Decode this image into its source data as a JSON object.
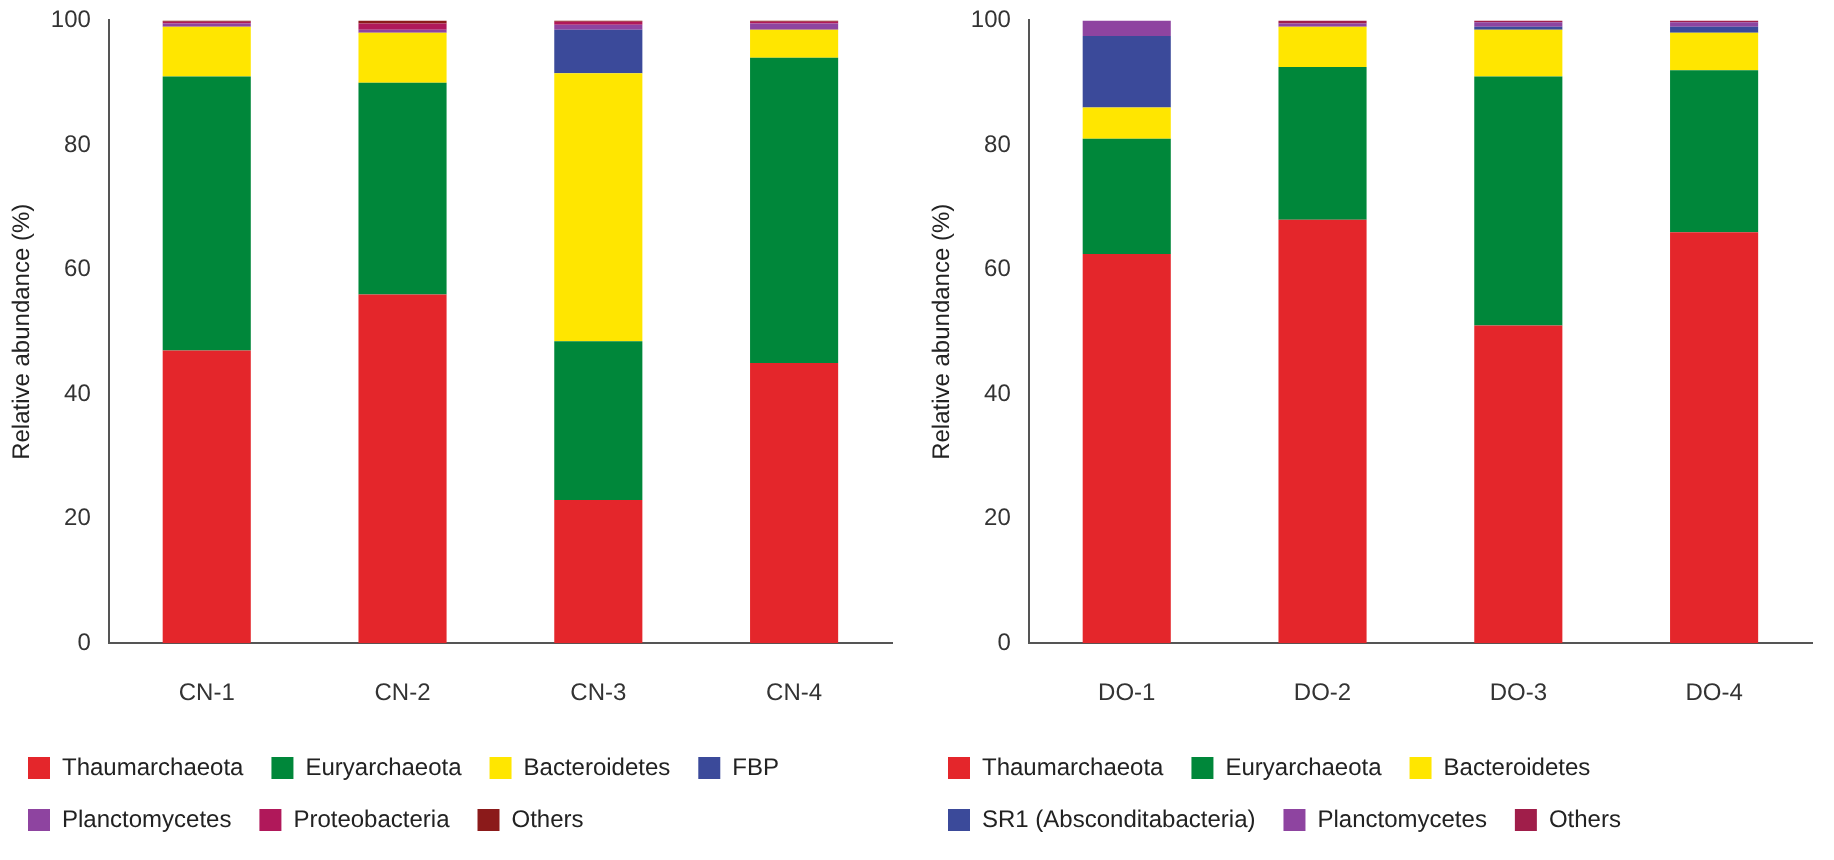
{
  "chart_data": [
    {
      "type": "bar",
      "stacked": true,
      "ylabel": "Relative abundance (%)",
      "categories": [
        "CN-1",
        "CN-2",
        "CN-3",
        "CN-4"
      ],
      "ylim": [
        0,
        100
      ],
      "yticks": [
        0,
        20,
        40,
        60,
        80,
        100
      ],
      "grid": false,
      "legend": "bottom",
      "series": [
        {
          "name": "Thaumarchaeota",
          "color": "#e4262b",
          "values": [
            47,
            56,
            23,
            45
          ]
        },
        {
          "name": "Euryarchaeota",
          "color": "#00873a",
          "values": [
            44,
            34,
            25.5,
            49
          ]
        },
        {
          "name": "Bacteroidetes",
          "color": "#ffe600",
          "values": [
            8,
            8,
            43,
            4.5
          ]
        },
        {
          "name": "FBP",
          "color": "#3b4a9a",
          "values": [
            0,
            0,
            7,
            0
          ]
        },
        {
          "name": "Planctomycetes",
          "color": "#8e44a0",
          "values": [
            0.5,
            0.5,
            0.8,
            1
          ]
        },
        {
          "name": "Proteobacteria",
          "color": "#b0185a",
          "values": [
            0.3,
            1,
            0.5,
            0.3
          ]
        },
        {
          "name": "Others",
          "color": "#8b1a1a",
          "values": [
            0.2,
            0.5,
            0.2,
            0.2
          ]
        }
      ]
    },
    {
      "type": "bar",
      "stacked": true,
      "ylabel": "Relative abundance (%)",
      "categories": [
        "DO-1",
        "DO-2",
        "DO-3",
        "DO-4"
      ],
      "ylim": [
        0,
        100
      ],
      "yticks": [
        0,
        20,
        40,
        60,
        80,
        100
      ],
      "grid": false,
      "legend": "bottom",
      "series": [
        {
          "name": "Thaumarchaeota",
          "color": "#e4262b",
          "values": [
            62.5,
            68,
            51,
            66
          ]
        },
        {
          "name": "Euryarchaeota",
          "color": "#00873a",
          "values": [
            18.5,
            24.5,
            40,
            26
          ]
        },
        {
          "name": "Bacteroidetes",
          "color": "#ffe600",
          "values": [
            5,
            6.5,
            7.5,
            6
          ]
        },
        {
          "name": "SR1 (Absconditabacteria)",
          "color": "#3b4a9a",
          "values": [
            11.5,
            0,
            0.5,
            1
          ]
        },
        {
          "name": "Planctomycetes",
          "color": "#8e44a0",
          "values": [
            2.5,
            0.5,
            0.7,
            0.7
          ]
        },
        {
          "name": "Others",
          "color": "#a01e4a",
          "values": [
            0,
            0.5,
            0.3,
            0.3
          ]
        }
      ]
    }
  ]
}
